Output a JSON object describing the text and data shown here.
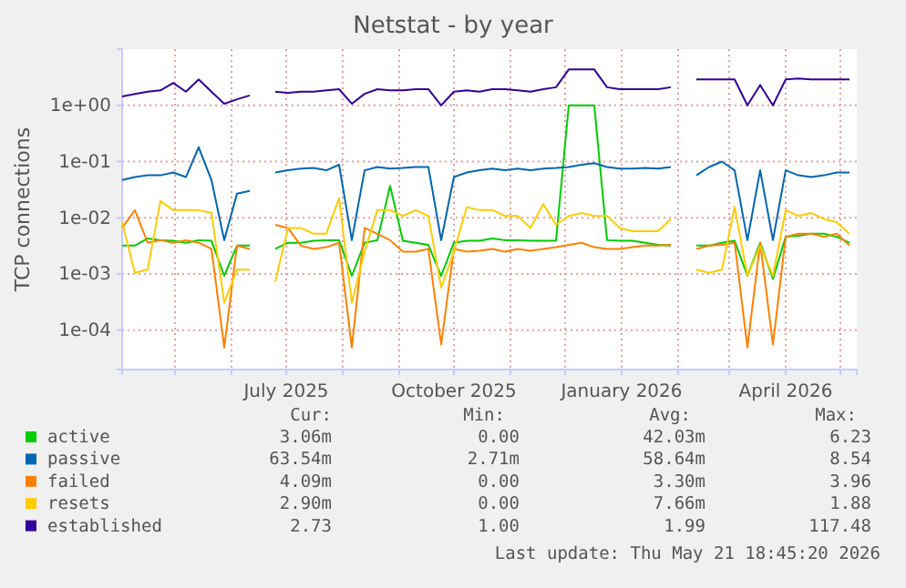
{
  "chart_data": {
    "type": "line",
    "title": "Netstat - by year",
    "ylabel": "TCP connections",
    "log": "y",
    "grid": true,
    "legend": "bottom",
    "ylim": [
      2e-05,
      10
    ],
    "yticks": [
      {
        "value": 0.0001,
        "label": "1e-04"
      },
      {
        "value": 0.001,
        "label": "1e-03"
      },
      {
        "value": 0.01,
        "label": "1e-02"
      },
      {
        "value": 0.1,
        "label": "1e-01"
      },
      {
        "value": 1,
        "label": "1e+00"
      }
    ],
    "xlim": [
      "2025-04-02",
      "2026-05-10"
    ],
    "xticks": [
      {
        "value": "2025-05-01",
        "label": null
      },
      {
        "value": "2025-06-01",
        "label": null
      },
      {
        "value": "2025-07-01",
        "label": "July 2025"
      },
      {
        "value": "2025-08-01",
        "label": null
      },
      {
        "value": "2025-09-01",
        "label": null
      },
      {
        "value": "2025-10-01",
        "label": "October 2025"
      },
      {
        "value": "2025-11-01",
        "label": null
      },
      {
        "value": "2025-12-01",
        "label": null
      },
      {
        "value": "2026-01-01",
        "label": "January 2026"
      },
      {
        "value": "2026-02-01",
        "label": null
      },
      {
        "value": "2026-03-01",
        "label": null
      },
      {
        "value": "2026-04-01",
        "label": "April 2026"
      },
      {
        "value": "2026-05-01",
        "label": null
      }
    ],
    "x": [
      "2025-04-02",
      "2025-04-09",
      "2025-04-16",
      "2025-04-23",
      "2025-04-30",
      "2025-05-07",
      "2025-05-14",
      "2025-05-21",
      "2025-05-28",
      "2025-06-04",
      "2025-06-11",
      "2025-06-18",
      "2025-06-25",
      "2025-07-02",
      "2025-07-09",
      "2025-07-16",
      "2025-07-23",
      "2025-07-30",
      "2025-08-06",
      "2025-08-13",
      "2025-08-20",
      "2025-08-27",
      "2025-09-03",
      "2025-09-10",
      "2025-09-17",
      "2025-09-24",
      "2025-10-01",
      "2025-10-08",
      "2025-10-15",
      "2025-10-22",
      "2025-10-29",
      "2025-11-05",
      "2025-11-12",
      "2025-11-19",
      "2025-11-26",
      "2025-12-03",
      "2025-12-10",
      "2025-12-17",
      "2025-12-24",
      "2025-12-31",
      "2026-01-07",
      "2026-01-14",
      "2026-01-21",
      "2026-01-28",
      "2026-02-04",
      "2026-02-11",
      "2026-02-18",
      "2026-02-25",
      "2026-03-04",
      "2026-03-11",
      "2026-03-18",
      "2026-03-25",
      "2026-04-01",
      "2026-04-08",
      "2026-04-15",
      "2026-04-22",
      "2026-04-29",
      "2026-05-06"
    ],
    "series": [
      {
        "name": "active",
        "color": "#00cc00",
        "values": [
          0.0032,
          0.0032,
          0.0043,
          0.004,
          0.0039,
          0.0036,
          0.004,
          0.0039,
          0.00093,
          0.0032,
          0.0032,
          null,
          0.0028,
          0.0036,
          0.0036,
          0.0039,
          0.004,
          0.004,
          0.00093,
          0.0036,
          0.004,
          0.037,
          0.0039,
          0.0036,
          0.0033,
          0.00093,
          0.0036,
          0.0039,
          0.0039,
          0.0043,
          0.004,
          0.004,
          0.0039,
          0.0039,
          0.0039,
          1.0,
          1.0,
          1.0,
          0.004,
          0.0039,
          0.0039,
          0.0036,
          0.0033,
          0.0032,
          null,
          0.0032,
          0.0032,
          0.0036,
          0.0039,
          0.00093,
          0.0036,
          0.00082,
          0.0046,
          0.0048,
          0.0052,
          0.0052,
          0.0046,
          0.0036
        ]
      },
      {
        "name": "passive",
        "color": "#0066b3",
        "values": [
          0.047,
          0.053,
          0.057,
          0.057,
          0.064,
          0.053,
          0.18,
          0.047,
          0.004,
          0.027,
          0.03,
          null,
          0.064,
          0.07,
          0.075,
          0.077,
          0.07,
          0.088,
          0.004,
          0.07,
          0.08,
          0.075,
          0.077,
          0.08,
          0.08,
          0.004,
          0.053,
          0.064,
          0.07,
          0.075,
          0.07,
          0.075,
          0.07,
          0.075,
          0.077,
          0.08,
          0.088,
          0.094,
          0.08,
          0.075,
          0.075,
          0.077,
          0.075,
          0.08,
          null,
          0.057,
          0.08,
          0.1,
          0.07,
          0.004,
          0.07,
          0.004,
          0.07,
          0.057,
          0.053,
          0.057,
          0.064,
          0.064
        ]
      },
      {
        "name": "failed",
        "color": "#ff8000",
        "values": [
          0.0066,
          0.0137,
          0.0036,
          0.004,
          0.0036,
          0.004,
          0.0036,
          0.0028,
          4.9e-05,
          0.0032,
          0.0028,
          null,
          0.0075,
          0.0066,
          0.0032,
          0.0028,
          0.003,
          0.0036,
          4.9e-05,
          0.0066,
          0.0052,
          0.004,
          0.0025,
          0.0025,
          0.0028,
          5.6e-05,
          0.0028,
          0.0025,
          0.0026,
          0.0028,
          0.0025,
          0.0028,
          0.0026,
          0.0028,
          0.003,
          0.0033,
          0.0036,
          0.003,
          0.0028,
          0.0028,
          0.003,
          0.0032,
          0.0032,
          0.0033,
          null,
          0.0028,
          0.0032,
          0.0033,
          0.0036,
          4.9e-05,
          0.0036,
          5.6e-05,
          0.0046,
          0.0052,
          0.0052,
          0.0046,
          0.0052,
          0.0032
        ]
      },
      {
        "name": "resets",
        "color": "#ffcc00",
        "values": [
          0.0084,
          0.00105,
          0.0012,
          0.0199,
          0.0137,
          0.0137,
          0.0137,
          0.0122,
          0.00031,
          0.0012,
          0.0012,
          null,
          0.00073,
          0.0066,
          0.0066,
          0.0052,
          0.0052,
          0.0224,
          0.00031,
          0.0025,
          0.0137,
          0.0137,
          0.0108,
          0.0137,
          0.0108,
          0.00057,
          0.0025,
          0.0155,
          0.0137,
          0.0137,
          0.0108,
          0.0108,
          0.0066,
          0.0176,
          0.0075,
          0.0108,
          0.0122,
          0.0108,
          0.0108,
          0.0066,
          0.0058,
          0.0058,
          0.0058,
          0.0095,
          null,
          0.0012,
          0.00105,
          0.0012,
          0.0155,
          0.00093,
          0.0032,
          0.00093,
          0.0137,
          0.0108,
          0.0122,
          0.0095,
          0.0084,
          0.0052
        ]
      },
      {
        "name": "established",
        "color": "#330099",
        "values": [
          1.44,
          1.6,
          1.75,
          1.85,
          2.5,
          1.75,
          2.9,
          1.75,
          1.07,
          1.28,
          1.5,
          null,
          1.75,
          1.67,
          1.75,
          1.75,
          1.85,
          1.94,
          1.07,
          1.6,
          1.94,
          1.85,
          1.85,
          1.94,
          1.94,
          1.0,
          1.75,
          1.85,
          1.75,
          1.94,
          1.94,
          1.85,
          1.75,
          1.94,
          2.1,
          4.35,
          4.35,
          4.35,
          2.1,
          1.94,
          1.94,
          1.94,
          1.94,
          2.1,
          null,
          2.9,
          2.9,
          2.9,
          2.9,
          1.0,
          2.3,
          1.0,
          2.9,
          3.0,
          2.9,
          2.9,
          2.9,
          2.9
        ]
      }
    ],
    "annotations": [
      "Cur:",
      "Min:",
      "Avg:",
      "Max:",
      "3.06m",
      "0.00",
      "42.03m",
      "6.23",
      "63.54m",
      "2.71m",
      "58.64m",
      "8.54",
      "4.09m",
      "0.00",
      "3.30m",
      "3.96",
      "2.90m",
      "0.00",
      "7.66m",
      "1.88",
      "2.73",
      "1.00",
      "1.99",
      "117.48",
      "Last update: Thu May 21 18:45:20 2026"
    ]
  }
}
